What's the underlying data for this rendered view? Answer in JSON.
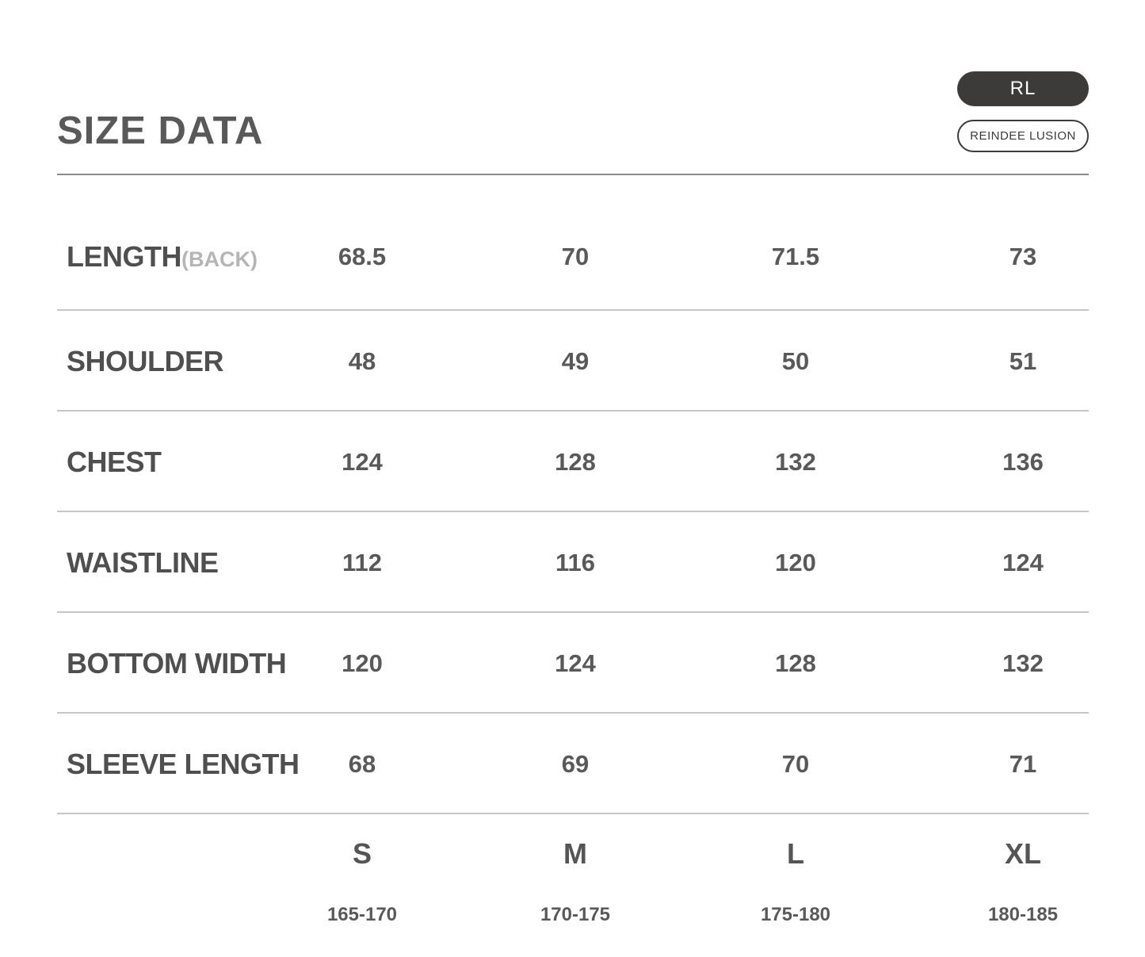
{
  "header": {
    "title": "SIZE DATA",
    "brand_badge": "RL",
    "brand_name": "REINDEE LUSION"
  },
  "table": {
    "rows": [
      {
        "label": "LENGTH",
        "label_suffix": "(BACK)",
        "values": [
          "68.5",
          "70",
          "71.5",
          "73"
        ]
      },
      {
        "label": "SHOULDER",
        "label_suffix": "",
        "values": [
          "48",
          "49",
          "50",
          "51"
        ]
      },
      {
        "label": "CHEST",
        "label_suffix": "",
        "values": [
          "124",
          "128",
          "132",
          "136"
        ]
      },
      {
        "label": "WAISTLINE",
        "label_suffix": "",
        "values": [
          "112",
          "116",
          "120",
          "124"
        ]
      },
      {
        "label": "BOTTOM WIDTH",
        "label_suffix": "",
        "values": [
          "120",
          "124",
          "128",
          "132"
        ]
      },
      {
        "label": "SLEEVE LENGTH",
        "label_suffix": "",
        "values": [
          "68",
          "69",
          "70",
          "71"
        ]
      }
    ],
    "sizes": [
      {
        "size": "S",
        "height_range": "165-170"
      },
      {
        "size": "M",
        "height_range": "170-175"
      },
      {
        "size": "L",
        "height_range": "175-180"
      },
      {
        "size": "XL",
        "height_range": "180-185"
      }
    ]
  },
  "colors": {
    "text": "#595959",
    "label_text": "#4f4f4f",
    "muted_suffix": "#b5b5b5",
    "badge_background": "#3d3a3a",
    "badge_text": "#ffffff",
    "header_line": "#8c8c8c",
    "row_line": "#c6c6c6",
    "page_background": "#ffffff"
  },
  "chart_data": {
    "type": "table",
    "title": "SIZE DATA",
    "row_headers": [
      "LENGTH(BACK)",
      "SHOULDER",
      "CHEST",
      "WAISTLINE",
      "BOTTOM WIDTH",
      "SLEEVE LENGTH"
    ],
    "column_headers": [
      "S",
      "M",
      "L",
      "XL"
    ],
    "column_subheaders_height_cm": [
      "165-170",
      "170-175",
      "175-180",
      "180-185"
    ],
    "rows": [
      [
        68.5,
        70,
        71.5,
        73
      ],
      [
        48,
        49,
        50,
        51
      ],
      [
        124,
        128,
        132,
        136
      ],
      [
        112,
        116,
        120,
        124
      ],
      [
        120,
        124,
        128,
        132
      ],
      [
        68,
        69,
        70,
        71
      ]
    ],
    "legend_position": "bottom",
    "grid": "horizontal-rules-only"
  }
}
